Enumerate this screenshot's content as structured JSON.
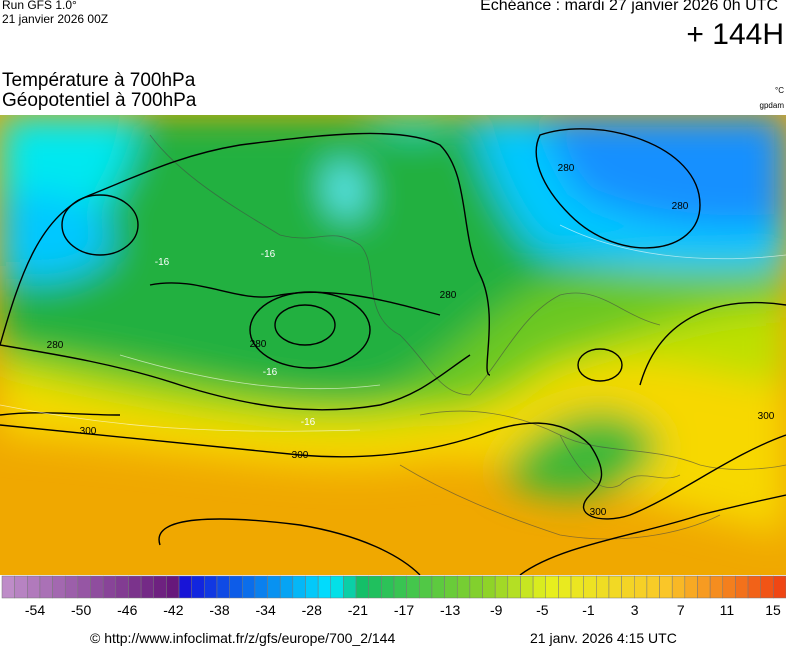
{
  "header": {
    "run": "Run GFS 1.0°",
    "run_date": "21 janvier 2026 00Z",
    "valid": "Echéance : mardi 27 janvier 2026 0h UTC",
    "lead": "+ 144H"
  },
  "title": {
    "line1": "Température à 700hPa",
    "line2": "Géopotentiel à 700hPa",
    "unit_temp": "°C",
    "unit_geo": "gpdam"
  },
  "contour_labels": [
    "280",
    "280",
    "280",
    "280",
    "280",
    "300",
    "300",
    "300",
    "300",
    "-16",
    "-16",
    "-16",
    "-16"
  ],
  "colorbar": {
    "labels": [
      -54,
      -50,
      -46,
      -42,
      -38,
      -34,
      -28,
      -21,
      -17,
      -13,
      -9,
      -5,
      -1,
      3,
      7,
      11,
      15
    ]
  },
  "footer": {
    "source": "© http://www.infoclimat.fr/z/gfs/europe/700_2/144",
    "date": "21 janv. 2026  4:15 UTC"
  }
}
